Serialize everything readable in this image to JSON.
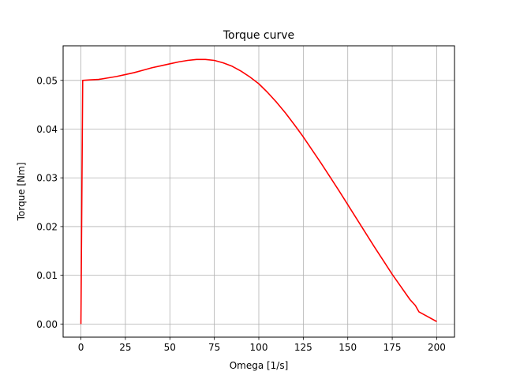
{
  "chart_data": {
    "type": "line",
    "title": "Torque curve",
    "xlabel": "Omega [1/s]",
    "ylabel": "Torque [Nm]",
    "xlim": [
      -10,
      210
    ],
    "ylim": [
      -0.0027,
      0.0571
    ],
    "grid": true,
    "x_ticks": [
      0,
      25,
      50,
      75,
      100,
      125,
      150,
      175,
      200
    ],
    "y_ticks": [
      0.0,
      0.01,
      0.02,
      0.03,
      0.04,
      0.05
    ],
    "x_tick_labels": [
      "0",
      "25",
      "50",
      "75",
      "100",
      "125",
      "150",
      "175",
      "200"
    ],
    "y_tick_labels": [
      "0.00",
      "0.01",
      "0.02",
      "0.03",
      "0.04",
      "0.05"
    ],
    "series": [
      {
        "color": "#ff0000",
        "x": [
          0,
          1,
          5,
          10,
          15,
          20,
          25,
          30,
          35,
          40,
          45,
          50,
          55,
          60,
          65,
          70,
          75,
          80,
          85,
          90,
          95,
          100,
          105,
          110,
          115,
          120,
          125,
          130,
          135,
          140,
          145,
          150,
          155,
          160,
          165,
          170,
          175,
          180,
          185,
          188,
          190,
          195,
          200
        ],
        "y": [
          0.0,
          0.05,
          0.0501,
          0.0502,
          0.0505,
          0.0508,
          0.0512,
          0.0516,
          0.0521,
          0.0526,
          0.053,
          0.0534,
          0.0538,
          0.0541,
          0.0543,
          0.0543,
          0.0541,
          0.0536,
          0.0529,
          0.0519,
          0.0507,
          0.0493,
          0.0475,
          0.0455,
          0.0433,
          0.0409,
          0.0384,
          0.0357,
          0.033,
          0.0302,
          0.0274,
          0.0245,
          0.0216,
          0.0187,
          0.0158,
          0.013,
          0.0102,
          0.0076,
          0.005,
          0.0038,
          0.0025,
          0.0015,
          0.0005
        ]
      }
    ]
  }
}
